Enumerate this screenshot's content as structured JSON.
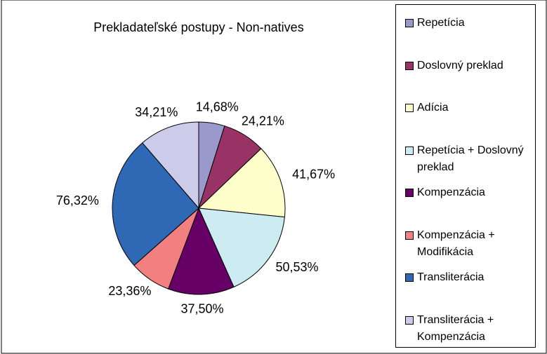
{
  "chart_data": {
    "type": "pie",
    "title": "Prekladateľské postupy - Non-natives",
    "categories": [
      "Repetícia",
      "Doslovný preklad",
      "Adícia",
      "Repetícia + Doslovný preklad",
      "Kompenzácia",
      "Kompenzácia + Modifikácia",
      "Transliterácia",
      "Transliterácia + Kompenzácia"
    ],
    "values": [
      14.68,
      24.21,
      41.67,
      50.53,
      37.5,
      23.36,
      76.32,
      34.21
    ],
    "value_labels": [
      "14,68%",
      "24,21%",
      "41,67%",
      "50,53%",
      "37,50%",
      "23,36%",
      "76,32%",
      "34,21%"
    ],
    "colors": [
      "#9999cc",
      "#993366",
      "#ffffcc",
      "#ccecf2",
      "#660066",
      "#f28080",
      "#2f68b4",
      "#ccccea"
    ],
    "legend": "right"
  }
}
